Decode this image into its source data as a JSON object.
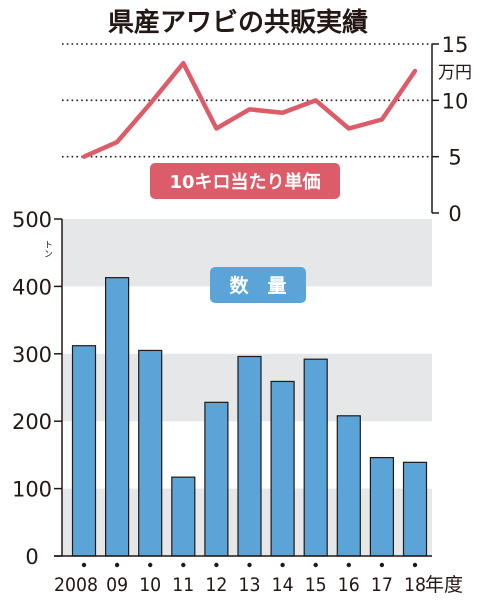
{
  "chart_data": [
    {
      "type": "line",
      "title": "県産アワビの共販実績",
      "series_label": "10キロ当たり単価",
      "unit": "万円",
      "ylim": [
        0,
        15
      ],
      "yticks": [
        0,
        5,
        10,
        15
      ],
      "categories": [
        "2008",
        "09",
        "10",
        "11",
        "12",
        "13",
        "14",
        "15",
        "16",
        "17",
        "18"
      ],
      "values": [
        5.0,
        6.3,
        9.7,
        13.3,
        7.5,
        9.2,
        8.9,
        10.0,
        7.5,
        8.3,
        12.6
      ],
      "color": "#dc5d69",
      "grid": "dotted"
    },
    {
      "type": "bar",
      "series_label": "数　量",
      "unit": "トン",
      "ylim": [
        0,
        500
      ],
      "yticks": [
        0,
        100,
        200,
        300,
        400,
        500
      ],
      "categories": [
        "2008",
        "09",
        "10",
        "11",
        "12",
        "13",
        "14",
        "15",
        "16",
        "17",
        "18"
      ],
      "category_suffix": "年度",
      "values": [
        312,
        413,
        305,
        117,
        228,
        296,
        259,
        292,
        208,
        146,
        139
      ],
      "color": "#5ba4d7",
      "band_color": "#e6e7e8"
    }
  ]
}
